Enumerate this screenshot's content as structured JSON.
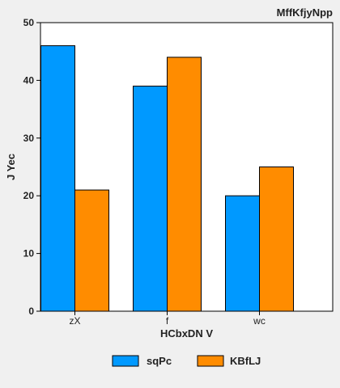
{
  "chart_data": {
    "type": "bar",
    "title": "MffKfjyNpp",
    "xlabel": "HCbxDN V",
    "ylabel": "J Yec",
    "categories": [
      "zX",
      "f",
      "wc"
    ],
    "series": [
      {
        "name": "sqPc",
        "values": [
          46,
          39,
          20
        ],
        "color": "#0099ff"
      },
      {
        "name": "KBfLJ",
        "values": [
          21,
          44,
          25
        ],
        "color": "#ff8c00"
      }
    ],
    "ylim": [
      0,
      50
    ],
    "yticks": [
      0,
      10,
      20,
      30,
      40,
      50
    ],
    "grid": false,
    "legend_position": "bottom"
  }
}
